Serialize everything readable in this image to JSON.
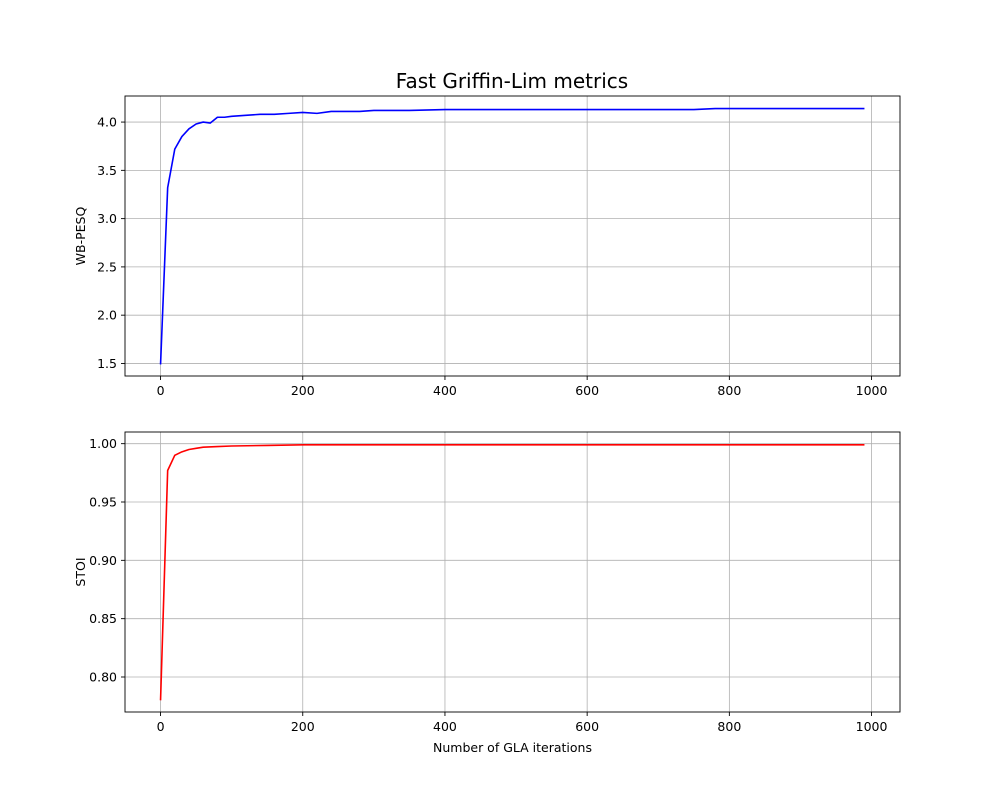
{
  "title": "Fast Griffin-Lim metrics",
  "chart_data": [
    {
      "type": "line",
      "title": "Fast Griffin-Lim metrics",
      "xlabel": "",
      "ylabel": "WB-PESQ",
      "xlim": [
        -50,
        1040
      ],
      "ylim": [
        1.37,
        4.27
      ],
      "xticks": [
        0,
        200,
        400,
        600,
        800,
        1000
      ],
      "xtick_labels": [
        "0",
        "200",
        "400",
        "600",
        "800",
        "1000"
      ],
      "yticks": [
        1.5,
        2.0,
        2.5,
        3.0,
        3.5,
        4.0
      ],
      "ytick_labels": [
        "1.5",
        "2.0",
        "2.5",
        "3.0",
        "3.5",
        "4.0"
      ],
      "grid": true,
      "color": "#0000ff",
      "series": [
        {
          "x": [
            0,
            10,
            20,
            30,
            40,
            50,
            60,
            70,
            80,
            90,
            100,
            120,
            140,
            160,
            180,
            200,
            220,
            240,
            260,
            280,
            300,
            350,
            400,
            450,
            500,
            550,
            600,
            650,
            700,
            750,
            780,
            800,
            850,
            900,
            950,
            990
          ],
          "y": [
            1.49,
            3.32,
            3.72,
            3.85,
            3.93,
            3.98,
            4.0,
            3.99,
            4.05,
            4.05,
            4.06,
            4.07,
            4.08,
            4.08,
            4.09,
            4.1,
            4.09,
            4.11,
            4.11,
            4.11,
            4.12,
            4.12,
            4.13,
            4.13,
            4.13,
            4.13,
            4.13,
            4.13,
            4.13,
            4.13,
            4.14,
            4.14,
            4.14,
            4.14,
            4.14,
            4.14
          ]
        }
      ]
    },
    {
      "type": "line",
      "title": "",
      "xlabel": "Number of GLA iterations",
      "ylabel": "STOI",
      "xlim": [
        -50,
        1040
      ],
      "ylim": [
        0.77,
        1.01
      ],
      "xticks": [
        0,
        200,
        400,
        600,
        800,
        1000
      ],
      "xtick_labels": [
        "0",
        "200",
        "400",
        "600",
        "800",
        "1000"
      ],
      "yticks": [
        0.8,
        0.85,
        0.9,
        0.95,
        1.0
      ],
      "ytick_labels": [
        "0.80",
        "0.85",
        "0.90",
        "0.95",
        "1.00"
      ],
      "grid": true,
      "color": "#ff0000",
      "series": [
        {
          "x": [
            0,
            10,
            20,
            30,
            40,
            50,
            60,
            80,
            100,
            150,
            200,
            300,
            400,
            500,
            600,
            700,
            800,
            900,
            990
          ],
          "y": [
            0.78,
            0.977,
            0.99,
            0.993,
            0.995,
            0.996,
            0.997,
            0.9975,
            0.998,
            0.9985,
            0.999,
            0.999,
            0.999,
            0.999,
            0.999,
            0.999,
            0.999,
            0.999,
            0.999
          ]
        }
      ]
    }
  ]
}
